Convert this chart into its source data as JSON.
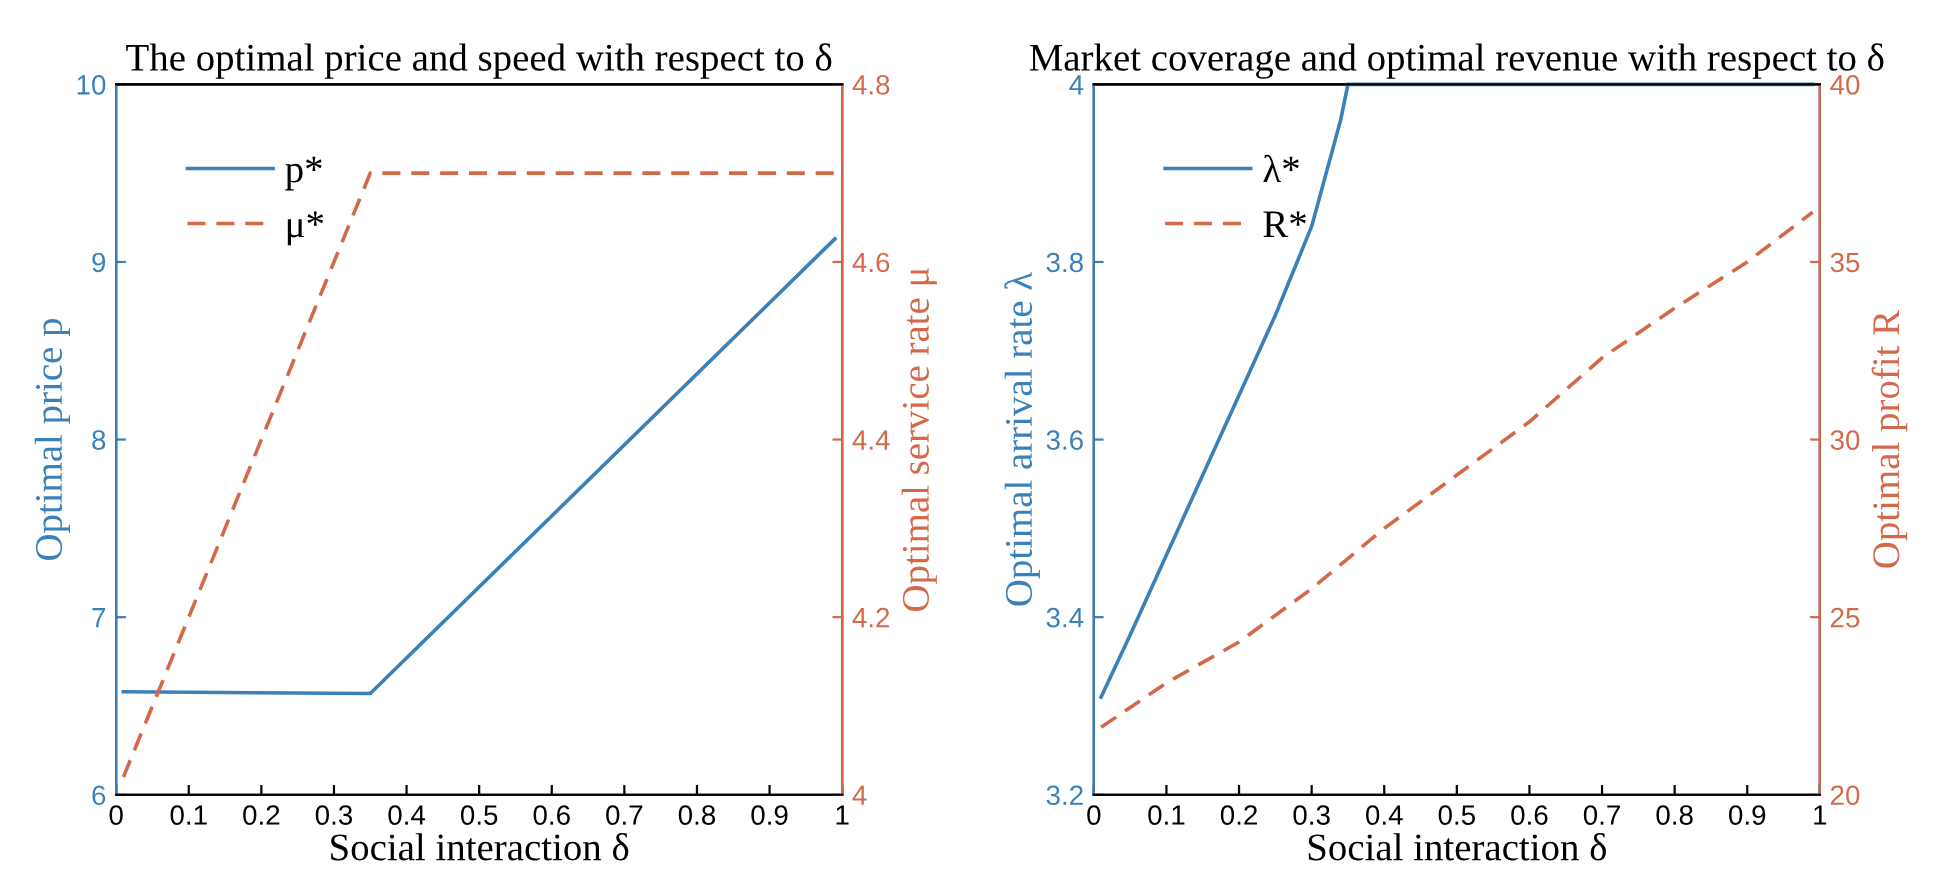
{
  "chart_data": [
    {
      "type": "line",
      "title": "The optimal price and speed with respect to δ",
      "xlabel": "Social interaction δ",
      "ylabel": "Optimal price p",
      "y2label": "Optimal service rate μ",
      "xlim": [
        0,
        1
      ],
      "xticks": [
        0,
        0.1,
        0.2,
        0.3,
        0.4,
        0.5,
        0.6,
        0.7,
        0.8,
        0.9,
        1
      ],
      "ylim": [
        6,
        10
      ],
      "yticks": [
        6,
        7,
        8,
        9,
        10
      ],
      "y2lim": [
        4,
        4.8
      ],
      "y2ticks": [
        4,
        4.2,
        4.4,
        4.6,
        4.8
      ],
      "legend": "top left",
      "grid": false,
      "series": [
        {
          "name": "p*",
          "color": "#3a80b9",
          "line_style": "solid",
          "axis": "y",
          "x": [
            0.01,
            0.35,
            0.99
          ],
          "values": [
            6.58,
            6.57,
            9.13
          ]
        },
        {
          "name": "μ*",
          "color": "#d4694a",
          "line_style": "dashed",
          "axis": "y2",
          "x": [
            0.01,
            0.35,
            0.99
          ],
          "values": [
            4.02,
            4.7,
            4.7
          ]
        }
      ]
    },
    {
      "type": "line",
      "title": "Market coverage and optimal revenue with respect to δ",
      "xlabel": "Social interaction δ",
      "ylabel": "Optimal arrival rate λ",
      "y2label": "Optimal profit R",
      "xlim": [
        0,
        1
      ],
      "xticks": [
        0,
        0.1,
        0.2,
        0.3,
        0.4,
        0.5,
        0.6,
        0.7,
        0.8,
        0.9,
        1
      ],
      "ylim": [
        3.2,
        4
      ],
      "yticks": [
        3.2,
        3.4,
        3.6,
        3.8,
        4
      ],
      "y2lim": [
        20,
        40
      ],
      "y2ticks": [
        20,
        25,
        30,
        35,
        40
      ],
      "legend": "top left",
      "grid": false,
      "series": [
        {
          "name": "λ*",
          "color": "#3a80b9",
          "line_style": "solid",
          "axis": "y",
          "x": [
            0.01,
            0.05,
            0.1,
            0.15,
            0.2,
            0.25,
            0.3,
            0.34,
            0.35,
            0.99
          ],
          "values": [
            3.31,
            3.38,
            3.47,
            3.56,
            3.65,
            3.74,
            3.84,
            3.96,
            4.0,
            4.0
          ]
        },
        {
          "name": "R*",
          "color": "#d4694a",
          "line_style": "dashed",
          "axis": "y2",
          "x": [
            0.01,
            0.1,
            0.2,
            0.3,
            0.4,
            0.5,
            0.6,
            0.7,
            0.8,
            0.9,
            0.99
          ],
          "values": [
            21.9,
            23.15,
            24.3,
            25.8,
            27.5,
            29.0,
            30.5,
            32.3,
            33.7,
            35.0,
            36.4
          ]
        }
      ]
    }
  ]
}
